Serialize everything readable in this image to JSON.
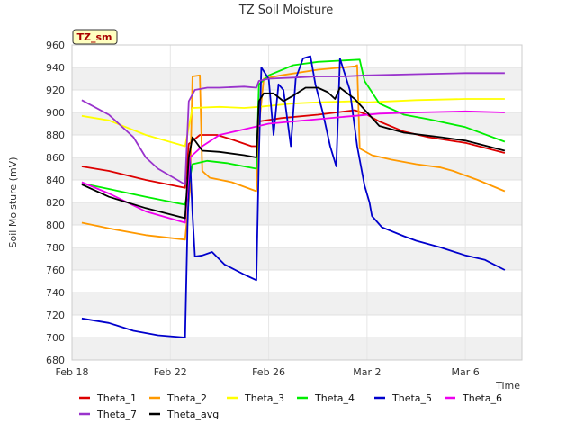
{
  "chart_data": {
    "type": "line",
    "title": "TZ Soil Moisture",
    "xlabel": "Time",
    "ylabel": "Soil Moisture (mV)",
    "site_label": "TZ_sm",
    "xlim": [
      0,
      18.3
    ],
    "ylim": [
      680,
      960
    ],
    "yticks": [
      680,
      700,
      720,
      740,
      760,
      780,
      800,
      820,
      840,
      860,
      880,
      900,
      920,
      940,
      960
    ],
    "xticks": [
      {
        "label": "Feb 18",
        "day": 0
      },
      {
        "label": "Feb 22",
        "day": 4
      },
      {
        "label": "Feb 26",
        "day": 8
      },
      {
        "label": "Mar 2",
        "day": 12
      },
      {
        "label": "Mar 6",
        "day": 16
      }
    ],
    "series": [
      {
        "name": "Theta_1",
        "color": "#dd0000",
        "points": [
          [
            0.4,
            852
          ],
          [
            1.5,
            848
          ],
          [
            3,
            840
          ],
          [
            4.6,
            833
          ],
          [
            4.75,
            872
          ],
          [
            5.2,
            880
          ],
          [
            5.9,
            880
          ],
          [
            6.5,
            876
          ],
          [
            7.3,
            870
          ],
          [
            7.5,
            870
          ],
          [
            7.6,
            892
          ],
          [
            8.5,
            895
          ],
          [
            10,
            898
          ],
          [
            11.5,
            902
          ],
          [
            12,
            898
          ],
          [
            12.5,
            892
          ],
          [
            13.5,
            883
          ],
          [
            14.5,
            878
          ],
          [
            16,
            873
          ],
          [
            17.6,
            864
          ]
        ]
      },
      {
        "name": "Theta_2",
        "color": "#ff9900",
        "points": [
          [
            0.4,
            802
          ],
          [
            1.5,
            797
          ],
          [
            3,
            791
          ],
          [
            4.6,
            787
          ],
          [
            4.8,
            832
          ],
          [
            4.9,
            932
          ],
          [
            5.2,
            933
          ],
          [
            5.3,
            848
          ],
          [
            5.6,
            842
          ],
          [
            6.5,
            838
          ],
          [
            7.5,
            830
          ],
          [
            7.6,
            887
          ],
          [
            7.8,
            930
          ],
          [
            8.5,
            933
          ],
          [
            10,
            938
          ],
          [
            11.5,
            941
          ],
          [
            11.6,
            942
          ],
          [
            11.7,
            868
          ],
          [
            12.2,
            862
          ],
          [
            13,
            858
          ],
          [
            14,
            854
          ],
          [
            15,
            851
          ],
          [
            15.5,
            848
          ],
          [
            16.5,
            840
          ],
          [
            17.6,
            830
          ]
        ]
      },
      {
        "name": "Theta_3",
        "color": "#ffff00",
        "points": [
          [
            0.4,
            897
          ],
          [
            1.5,
            893
          ],
          [
            3,
            880
          ],
          [
            4.6,
            870
          ],
          [
            4.9,
            904
          ],
          [
            6,
            905
          ],
          [
            7,
            904
          ],
          [
            7.6,
            905
          ],
          [
            9,
            908
          ],
          [
            10,
            909
          ],
          [
            11.5,
            910
          ],
          [
            12,
            909
          ],
          [
            14,
            911
          ],
          [
            16,
            912
          ],
          [
            17.6,
            912
          ]
        ]
      },
      {
        "name": "Theta_4",
        "color": "#00ee00",
        "points": [
          [
            0.4,
            837
          ],
          [
            1.5,
            832
          ],
          [
            3,
            825
          ],
          [
            4.6,
            818
          ],
          [
            4.9,
            854
          ],
          [
            5.5,
            857
          ],
          [
            6.3,
            855
          ],
          [
            7.5,
            850
          ],
          [
            7.6,
            925
          ],
          [
            8,
            933
          ],
          [
            9,
            942
          ],
          [
            10,
            945
          ],
          [
            11.7,
            947
          ],
          [
            11.9,
            928
          ],
          [
            12.5,
            908
          ],
          [
            13.5,
            898
          ],
          [
            14.5,
            894
          ],
          [
            16,
            887
          ],
          [
            17.6,
            874
          ]
        ]
      },
      {
        "name": "Theta_5",
        "color": "#0000cc",
        "points": [
          [
            0.4,
            717
          ],
          [
            1.5,
            713
          ],
          [
            2.5,
            706
          ],
          [
            3.5,
            702
          ],
          [
            4.6,
            700
          ],
          [
            4.7,
            800
          ],
          [
            4.8,
            860
          ],
          [
            4.9,
            810
          ],
          [
            5,
            772
          ],
          [
            5.3,
            773
          ],
          [
            5.7,
            776
          ],
          [
            6.2,
            765
          ],
          [
            7,
            756
          ],
          [
            7.5,
            751
          ],
          [
            7.6,
            860
          ],
          [
            7.7,
            940
          ],
          [
            8,
            930
          ],
          [
            8.2,
            880
          ],
          [
            8.4,
            925
          ],
          [
            8.6,
            920
          ],
          [
            8.9,
            870
          ],
          [
            9.1,
            930
          ],
          [
            9.4,
            948
          ],
          [
            9.7,
            950
          ],
          [
            9.9,
            925
          ],
          [
            10.2,
            900
          ],
          [
            10.5,
            870
          ],
          [
            10.75,
            852
          ],
          [
            10.9,
            948
          ],
          [
            11.3,
            920
          ],
          [
            11.6,
            870
          ],
          [
            11.9,
            835
          ],
          [
            12.1,
            820
          ],
          [
            12.2,
            808
          ],
          [
            12.6,
            798
          ],
          [
            13.5,
            790
          ],
          [
            14,
            786
          ],
          [
            15,
            780
          ],
          [
            16,
            773
          ],
          [
            16.8,
            769
          ],
          [
            17.6,
            760
          ]
        ]
      },
      {
        "name": "Theta_6",
        "color": "#ee00ee",
        "points": [
          [
            0.4,
            838
          ],
          [
            1.5,
            828
          ],
          [
            3,
            812
          ],
          [
            4.6,
            802
          ],
          [
            4.8,
            860
          ],
          [
            5.3,
            870
          ],
          [
            6,
            880
          ],
          [
            7,
            885
          ],
          [
            7.6,
            888
          ],
          [
            8,
            890
          ],
          [
            9,
            892
          ],
          [
            10,
            894
          ],
          [
            11,
            896
          ],
          [
            11.5,
            897
          ],
          [
            12.5,
            899
          ],
          [
            14,
            900
          ],
          [
            16,
            901
          ],
          [
            17.6,
            900
          ]
        ]
      },
      {
        "name": "Theta_7",
        "color": "#9933cc",
        "points": [
          [
            0.4,
            911
          ],
          [
            1.5,
            898
          ],
          [
            2.5,
            878
          ],
          [
            3,
            860
          ],
          [
            3.5,
            850
          ],
          [
            4.6,
            836
          ],
          [
            4.75,
            910
          ],
          [
            5,
            920
          ],
          [
            5.5,
            922
          ],
          [
            6,
            922
          ],
          [
            7,
            923
          ],
          [
            7.5,
            922
          ],
          [
            7.6,
            928
          ],
          [
            8,
            930
          ],
          [
            9,
            931
          ],
          [
            10,
            932
          ],
          [
            11,
            932
          ],
          [
            12,
            933
          ],
          [
            14,
            934
          ],
          [
            16,
            935
          ],
          [
            17.6,
            935
          ]
        ]
      },
      {
        "name": "Theta_avg",
        "color": "#000000",
        "points": [
          [
            0.4,
            836
          ],
          [
            1.5,
            825
          ],
          [
            3,
            815
          ],
          [
            4.6,
            806
          ],
          [
            4.75,
            860
          ],
          [
            4.9,
            878
          ],
          [
            5.3,
            866
          ],
          [
            6,
            865
          ],
          [
            7,
            862
          ],
          [
            7.5,
            860
          ],
          [
            7.6,
            910
          ],
          [
            7.8,
            917
          ],
          [
            8.2,
            917
          ],
          [
            8.6,
            910
          ],
          [
            9,
            915
          ],
          [
            9.5,
            922
          ],
          [
            10,
            922
          ],
          [
            10.4,
            918
          ],
          [
            10.7,
            912
          ],
          [
            10.9,
            922
          ],
          [
            11.5,
            912
          ],
          [
            12,
            900
          ],
          [
            12.5,
            888
          ],
          [
            13.5,
            882
          ],
          [
            15,
            878
          ],
          [
            16,
            875
          ],
          [
            17.6,
            866
          ]
        ]
      }
    ],
    "legend_order": [
      "Theta_1",
      "Theta_2",
      "Theta_3",
      "Theta_4",
      "Theta_5",
      "Theta_6",
      "Theta_7",
      "Theta_avg"
    ]
  }
}
